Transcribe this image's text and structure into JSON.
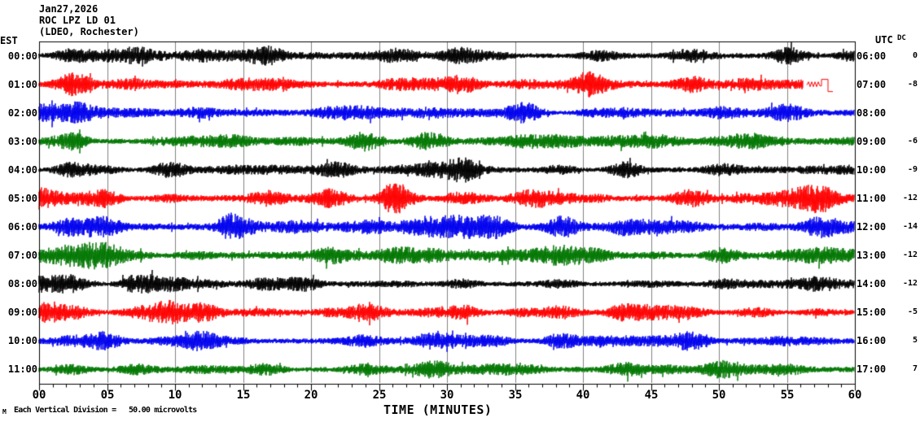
{
  "header": {
    "date": "Jan27,2026",
    "station": "ROC LPZ LD 01",
    "location": "(LDEO, Rochester)"
  },
  "axes": {
    "left_label": "EST",
    "right_label": "UTC",
    "dc_label": "DC",
    "x_axis_label": "TIME (MINUTES)",
    "x_ticks": [
      "00",
      "05",
      "10",
      "15",
      "20",
      "25",
      "30",
      "35",
      "40",
      "45",
      "50",
      "55",
      "60"
    ]
  },
  "footer": {
    "scale_note": "Each Vertical Division =   50.00 microvolts",
    "corner_mark": "M"
  },
  "chart_data": {
    "type": "line",
    "subtype": "helicorder-seismogram",
    "title": "ROC LPZ LD 01 (LDEO, Rochester) Jan27,2026",
    "xlabel": "TIME (MINUTES)",
    "x_range_minutes": [
      0,
      60
    ],
    "x_major_tick_minutes": 5,
    "x_minor_tick_minutes": 1,
    "minutes_per_line": 60,
    "vertical_division_microvolts": 50.0,
    "grid": "vertical gray gridlines every 5 minutes, full plot height",
    "legend_position": "none",
    "colors": {
      "black": "#000000",
      "red": "#ff0000",
      "blue": "#0000ee",
      "green": "#007700",
      "grid": "#808080",
      "border": "#000000"
    },
    "rows": [
      {
        "est": "00:00",
        "utc": "06:00",
        "dc": "0",
        "color": "black",
        "seed": 101,
        "base": 8.5,
        "bursts": [
          [
            7,
            2.5,
            1.5
          ],
          [
            21,
            2,
            1.5
          ],
          [
            42,
            1.2,
            1.9
          ],
          [
            55,
            2,
            1.5
          ]
        ]
      },
      {
        "est": "01:00",
        "utc": "07:00",
        "dc": "-8",
        "color": "red",
        "seed": 202,
        "base": 9,
        "bursts": [
          [
            5,
            2,
            1.5
          ],
          [
            17,
            2.5,
            1.7
          ],
          [
            31,
            1.5,
            1.4
          ],
          [
            39,
            2,
            1.8
          ],
          [
            51,
            2,
            1.8
          ]
        ],
        "end_minute": 56.2,
        "cal_pulse": true
      },
      {
        "est": "02:00",
        "utc": "08:00",
        "dc": "",
        "color": "blue",
        "seed": 303,
        "base": 8,
        "bursts": [
          [
            4,
            2,
            1.8
          ],
          [
            22,
            2.5,
            1.7
          ],
          [
            34,
            1.5,
            1.8
          ]
        ]
      },
      {
        "est": "03:00",
        "utc": "09:00",
        "dc": "-6",
        "color": "green",
        "seed": 404,
        "base": 8.5,
        "bursts": [
          [
            19,
            1.5,
            1.5
          ],
          [
            27,
            1.5,
            1.5
          ],
          [
            52,
            2,
            1.6
          ]
        ]
      },
      {
        "est": "04:00",
        "utc": "10:00",
        "dc": "-9",
        "color": "black",
        "seed": 505,
        "base": 8,
        "bursts": [
          [
            17,
            1.5,
            1.4
          ],
          [
            23,
            1.5,
            1.6
          ],
          [
            32,
            2,
            1.5
          ]
        ]
      },
      {
        "est": "05:00",
        "utc": "11:00",
        "dc": "-12",
        "color": "red",
        "seed": 606,
        "base": 9,
        "bursts": [
          [
            26,
            1.5,
            1.9
          ],
          [
            37,
            1.5,
            1.5
          ],
          [
            57,
            2,
            1.5
          ]
        ]
      },
      {
        "est": "06:00",
        "utc": "12:00",
        "dc": "-14",
        "color": "blue",
        "seed": 707,
        "base": 10,
        "bursts": [
          [
            27,
            3,
            1.7
          ],
          [
            40,
            2,
            1.6
          ],
          [
            13,
            2,
            1.3
          ]
        ]
      },
      {
        "est": "07:00",
        "utc": "13:00",
        "dc": "-12",
        "color": "green",
        "seed": 808,
        "base": 9,
        "bursts": [
          [
            5,
            2.5,
            1.6
          ],
          [
            11,
            1.5,
            1.4
          ],
          [
            38,
            3,
            1.6
          ]
        ]
      },
      {
        "est": "08:00",
        "utc": "14:00",
        "dc": "-12",
        "color": "black",
        "seed": 909,
        "base": 8,
        "bursts": [
          [
            20,
            1.5,
            1.5
          ],
          [
            45,
            2,
            1.6
          ]
        ]
      },
      {
        "est": "09:00",
        "utc": "15:00",
        "dc": "-5",
        "color": "red",
        "seed": 111,
        "base": 8.5,
        "bursts": [
          [
            8,
            1.5,
            1.5
          ],
          [
            12,
            1,
            1.4
          ],
          [
            25,
            1.5,
            1.4
          ],
          [
            35,
            1.5,
            1.5
          ]
        ]
      },
      {
        "est": "10:00",
        "utc": "16:00",
        "dc": "5",
        "color": "blue",
        "seed": 222,
        "base": 9,
        "bursts": [
          [
            24,
            3,
            1.6
          ],
          [
            41,
            1.5,
            1.9
          ],
          [
            53,
            1.5,
            1.3
          ]
        ]
      },
      {
        "est": "11:00",
        "utc": "17:00",
        "dc": "7",
        "color": "green",
        "seed": 333,
        "base": 8.5,
        "bursts": [
          [
            30,
            1.5,
            1.3
          ],
          [
            46,
            1.5,
            1.4
          ]
        ]
      }
    ]
  }
}
